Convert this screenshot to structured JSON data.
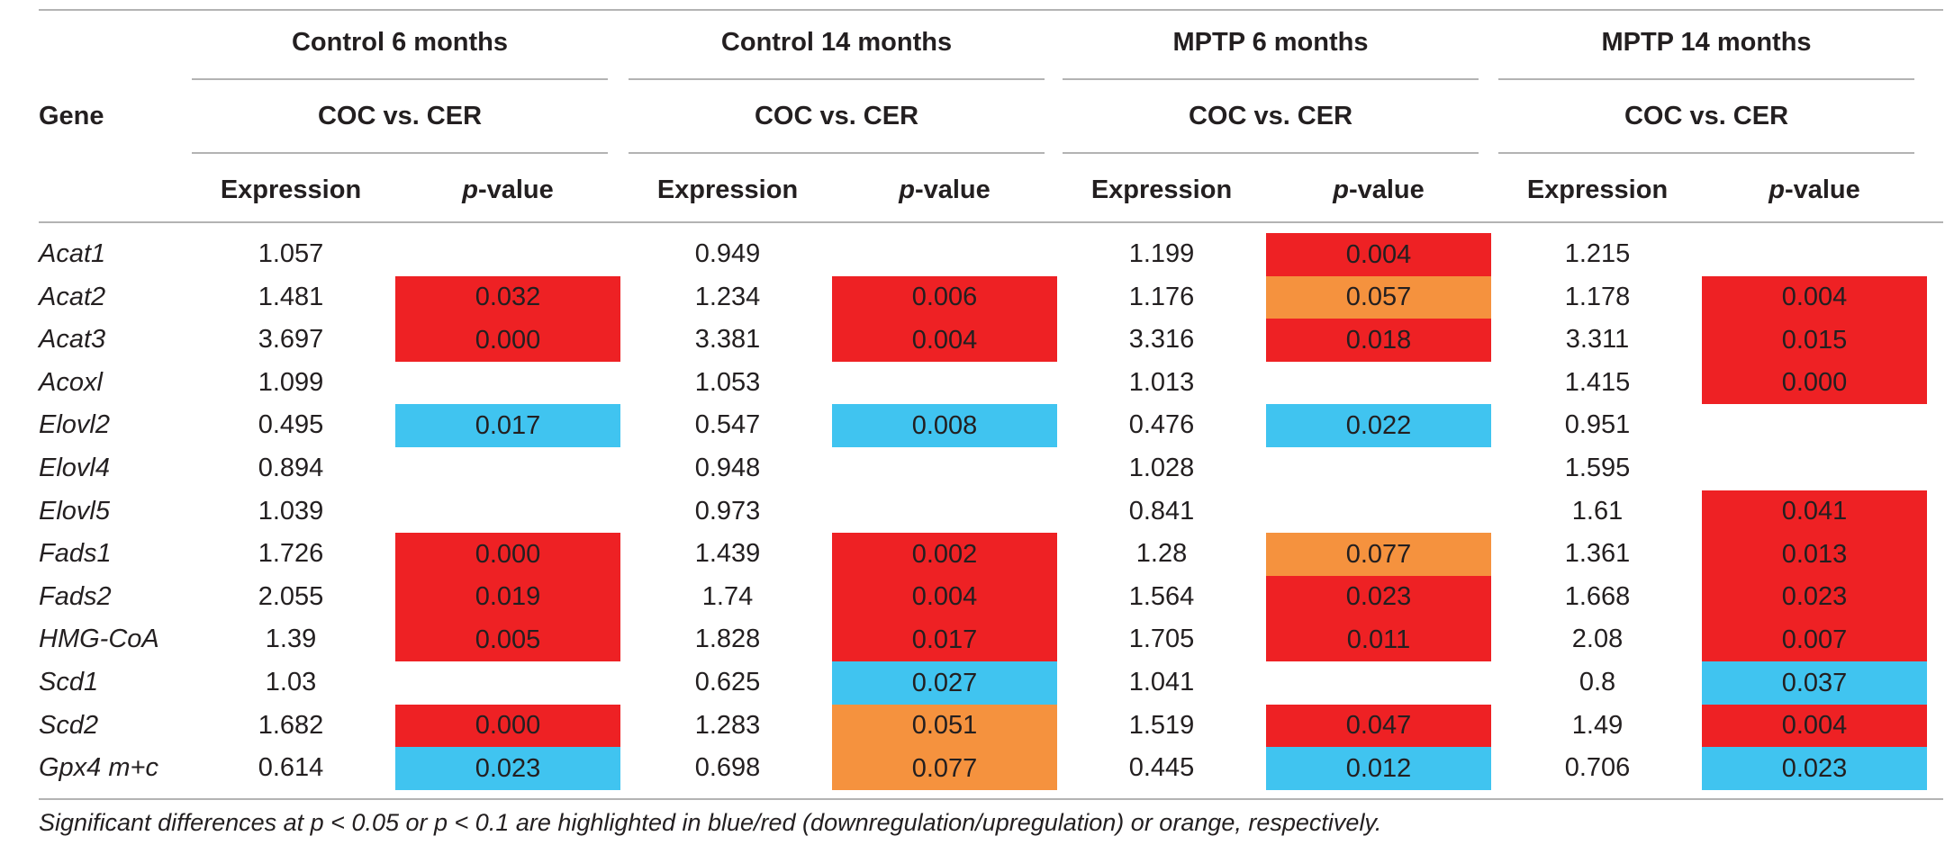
{
  "header": {
    "gene_label": "Gene",
    "groups": [
      {
        "title": "Control 6 months",
        "comparison": "COC vs. CER",
        "expression_label": "Expression",
        "pvalue_prefix": "p",
        "pvalue_suffix": "-value"
      },
      {
        "title": "Control 14 months",
        "comparison": "COC vs. CER",
        "expression_label": "Expression",
        "pvalue_prefix": "p",
        "pvalue_suffix": "-value"
      },
      {
        "title": "MPTP 6 months",
        "comparison": "COC vs. CER",
        "expression_label": "Expression",
        "pvalue_prefix": "p",
        "pvalue_suffix": "-value"
      },
      {
        "title": "MPTP 14 months",
        "comparison": "COC vs. CER",
        "expression_label": "Expression",
        "pvalue_prefix": "p",
        "pvalue_suffix": "-value"
      }
    ]
  },
  "colors": {
    "red": "#ee2124",
    "orange": "#f5923e",
    "blue": "#40c4f0",
    "rule": "#b3b3b3",
    "text": "#231f20"
  },
  "rows": [
    {
      "gene": "Acat1",
      "cells": [
        {
          "expr": "1.057",
          "p": "",
          "hl": ""
        },
        {
          "expr": "0.949",
          "p": "",
          "hl": ""
        },
        {
          "expr": "1.199",
          "p": "0.004",
          "hl": "red"
        },
        {
          "expr": "1.215",
          "p": "",
          "hl": ""
        }
      ]
    },
    {
      "gene": "Acat2",
      "cells": [
        {
          "expr": "1.481",
          "p": "0.032",
          "hl": "red"
        },
        {
          "expr": "1.234",
          "p": "0.006",
          "hl": "red"
        },
        {
          "expr": "1.176",
          "p": "0.057",
          "hl": "orange"
        },
        {
          "expr": "1.178",
          "p": "0.004",
          "hl": "red"
        }
      ]
    },
    {
      "gene": "Acat3",
      "cells": [
        {
          "expr": "3.697",
          "p": "0.000",
          "hl": "red"
        },
        {
          "expr": "3.381",
          "p": "0.004",
          "hl": "red"
        },
        {
          "expr": "3.316",
          "p": "0.018",
          "hl": "red"
        },
        {
          "expr": "3.311",
          "p": "0.015",
          "hl": "red"
        }
      ]
    },
    {
      "gene": "Acoxl",
      "cells": [
        {
          "expr": "1.099",
          "p": "",
          "hl": ""
        },
        {
          "expr": "1.053",
          "p": "",
          "hl": ""
        },
        {
          "expr": "1.013",
          "p": "",
          "hl": ""
        },
        {
          "expr": "1.415",
          "p": "0.000",
          "hl": "red"
        }
      ]
    },
    {
      "gene": "Elovl2",
      "cells": [
        {
          "expr": "0.495",
          "p": "0.017",
          "hl": "blue"
        },
        {
          "expr": "0.547",
          "p": "0.008",
          "hl": "blue"
        },
        {
          "expr": "0.476",
          "p": "0.022",
          "hl": "blue"
        },
        {
          "expr": "0.951",
          "p": "",
          "hl": ""
        }
      ]
    },
    {
      "gene": "Elovl4",
      "cells": [
        {
          "expr": "0.894",
          "p": "",
          "hl": ""
        },
        {
          "expr": "0.948",
          "p": "",
          "hl": ""
        },
        {
          "expr": "1.028",
          "p": "",
          "hl": ""
        },
        {
          "expr": "1.595",
          "p": "",
          "hl": ""
        }
      ]
    },
    {
      "gene": "Elovl5",
      "cells": [
        {
          "expr": "1.039",
          "p": "",
          "hl": ""
        },
        {
          "expr": "0.973",
          "p": "",
          "hl": ""
        },
        {
          "expr": "0.841",
          "p": "",
          "hl": ""
        },
        {
          "expr": "1.61",
          "p": "0.041",
          "hl": "red"
        }
      ]
    },
    {
      "gene": "Fads1",
      "cells": [
        {
          "expr": "1.726",
          "p": "0.000",
          "hl": "red"
        },
        {
          "expr": "1.439",
          "p": "0.002",
          "hl": "red"
        },
        {
          "expr": "1.28",
          "p": "0.077",
          "hl": "orange"
        },
        {
          "expr": "1.361",
          "p": "0.013",
          "hl": "red"
        }
      ]
    },
    {
      "gene": "Fads2",
      "cells": [
        {
          "expr": "2.055",
          "p": "0.019",
          "hl": "red"
        },
        {
          "expr": "1.74",
          "p": "0.004",
          "hl": "red"
        },
        {
          "expr": "1.564",
          "p": "0.023",
          "hl": "red"
        },
        {
          "expr": "1.668",
          "p": "0.023",
          "hl": "red"
        }
      ]
    },
    {
      "gene": "HMG-CoA",
      "cells": [
        {
          "expr": "1.39",
          "p": "0.005",
          "hl": "red"
        },
        {
          "expr": "1.828",
          "p": "0.017",
          "hl": "red"
        },
        {
          "expr": "1.705",
          "p": "0.011",
          "hl": "red"
        },
        {
          "expr": "2.08",
          "p": "0.007",
          "hl": "red"
        }
      ]
    },
    {
      "gene": "Scd1",
      "cells": [
        {
          "expr": "1.03",
          "p": "",
          "hl": ""
        },
        {
          "expr": "0.625",
          "p": "0.027",
          "hl": "blue"
        },
        {
          "expr": "1.041",
          "p": "",
          "hl": ""
        },
        {
          "expr": "0.8",
          "p": "0.037",
          "hl": "blue"
        }
      ]
    },
    {
      "gene": "Scd2",
      "cells": [
        {
          "expr": "1.682",
          "p": "0.000",
          "hl": "red"
        },
        {
          "expr": "1.283",
          "p": "0.051",
          "hl": "orange"
        },
        {
          "expr": "1.519",
          "p": "0.047",
          "hl": "red"
        },
        {
          "expr": "1.49",
          "p": "0.004",
          "hl": "red"
        }
      ]
    },
    {
      "gene": "Gpx4 m+c",
      "cells": [
        {
          "expr": "0.614",
          "p": "0.023",
          "hl": "blue"
        },
        {
          "expr": "0.698",
          "p": "0.077",
          "hl": "orange"
        },
        {
          "expr": "0.445",
          "p": "0.012",
          "hl": "blue"
        },
        {
          "expr": "0.706",
          "p": "0.023",
          "hl": "blue"
        }
      ]
    }
  ],
  "footnote": "Significant differences at p < 0.05 or p < 0.1 are highlighted in blue/red (downregulation/upregulation) or orange, respectively."
}
